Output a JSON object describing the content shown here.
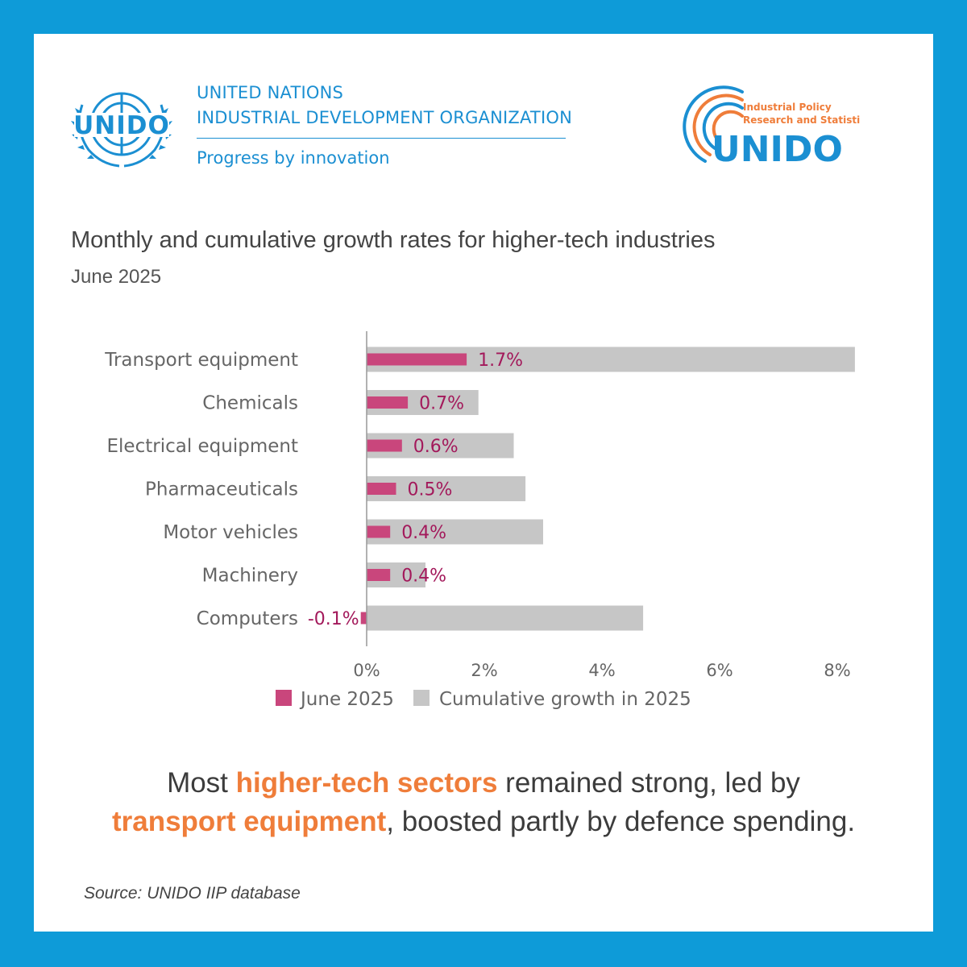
{
  "header": {
    "emblem_text": "UNIDO",
    "org_line1": "UNITED NATIONS",
    "org_line2": "INDUSTRIAL DEVELOPMENT ORGANIZATION",
    "motto": "Progress by innovation",
    "ips_line1": "Industrial Policy",
    "ips_line2": "Research and Statistics",
    "ips_wordmark": "UNIDO"
  },
  "title": "Monthly and cumulative growth rates for higher-tech industries",
  "subtitle": "June 2025",
  "colors": {
    "frame": "#0e9bd8",
    "brand_blue": "#1b8fd2",
    "highlight": "#ef7d3a",
    "june_series": "#c9467c",
    "june_label": "#a3195b",
    "cumulative_series": "#c6c6c6"
  },
  "chart_data": {
    "type": "bar",
    "orientation": "horizontal",
    "categories": [
      "Transport equipment",
      "Chemicals",
      "Electrical equipment",
      "Pharmaceuticals",
      "Motor vehicles",
      "Machinery",
      "Computers"
    ],
    "series": [
      {
        "name": "June 2025",
        "values": [
          1.7,
          0.7,
          0.6,
          0.5,
          0.4,
          0.4,
          -0.1
        ],
        "data_labels": [
          "1.7%",
          "0.7%",
          "0.6%",
          "0.5%",
          "0.4%",
          "0.4%",
          "-0.1%"
        ]
      },
      {
        "name": "Cumulative growth in 2025",
        "values": [
          8.3,
          1.9,
          2.5,
          2.7,
          3.0,
          1.0,
          4.7
        ]
      }
    ],
    "xlim": [
      0,
      8
    ],
    "x_ticks": [
      0,
      2,
      4,
      6,
      8
    ],
    "x_tick_labels": [
      "0%",
      "2%",
      "4%",
      "6%",
      "8%"
    ],
    "legend_position": "bottom",
    "grid": false
  },
  "caption": {
    "part1": "Most ",
    "highlight1": "higher-tech sectors",
    "part2": " remained strong, led by ",
    "highlight2": "transport equipment",
    "part3": ", boosted partly by defence spending."
  },
  "source": "Source: UNIDO IIP database"
}
